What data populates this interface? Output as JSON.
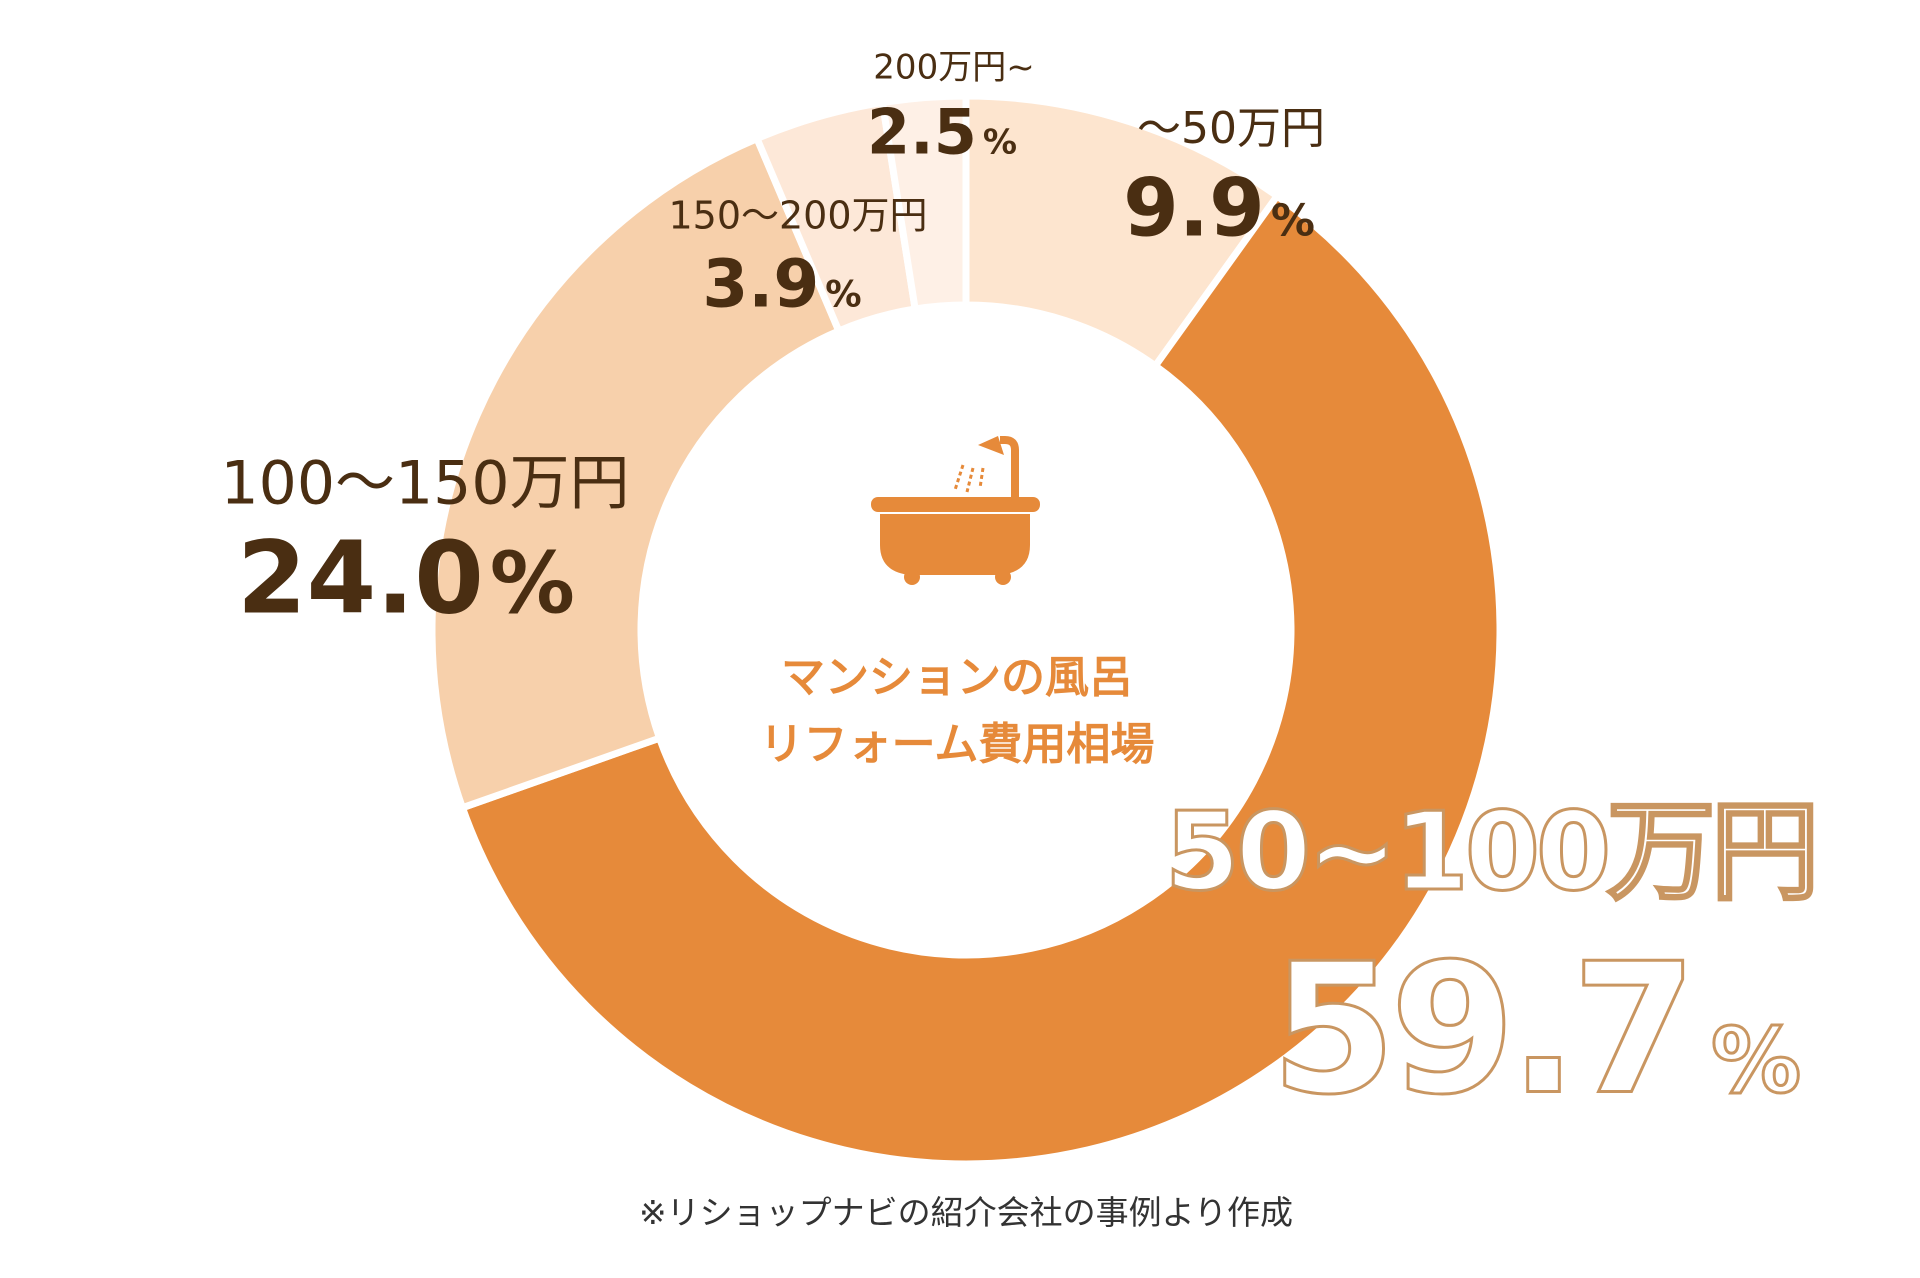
{
  "chart_data": {
    "type": "pie",
    "donut": true,
    "title": "マンションの風呂リフォーム費用相場",
    "title_lines": [
      "マンションの風呂",
      "リフォーム費用相場"
    ],
    "center_icon": "bathtub-shower-icon",
    "unit": "%",
    "slices": [
      {
        "label": "～50万円",
        "value": 9.9,
        "value_text": "9.9",
        "color": "#fde5cf"
      },
      {
        "label": "50~100万円",
        "value": 59.7,
        "value_text": "59.7",
        "color": "#e68a3a"
      },
      {
        "label": "100～150万円",
        "value": 24.0,
        "value_text": "24.0",
        "color": "#f7d0ab"
      },
      {
        "label": "150～200万円",
        "value": 3.9,
        "value_text": "3.9",
        "color": "#fde8d8"
      },
      {
        "label": "200万円~",
        "value": 2.5,
        "value_text": "2.5",
        "color": "#fef0e6"
      }
    ],
    "legend": "none",
    "note": "※リショップナビの紹介会社の事例より作成"
  }
}
